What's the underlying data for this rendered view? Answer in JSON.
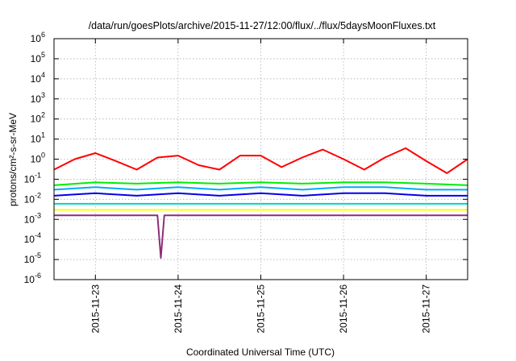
{
  "chart_data": {
    "type": "line",
    "title": "/data/run/goesPlots/archive/2015-11-27/12:00/flux/../flux/5daysMoonFluxes.txt",
    "xlabel": "Coordinated Universal Time (UTC)",
    "ylabel": "protons/cm²-s-sr-MeV",
    "y_scale": "log",
    "ylim": [
      1e-06,
      1000000.0
    ],
    "xlim": [
      "2015-11-22 12:00",
      "2015-11-27 12:00"
    ],
    "grid": true,
    "legend": "none",
    "x_ticks": [
      "2015-11-23",
      "2015-11-24",
      "2015-11-25",
      "2015-11-26",
      "2015-11-27"
    ],
    "y_ticks": [
      "1e-6",
      "1e-5",
      "1e-4",
      "1e-3",
      "1e-2",
      "1e-1",
      "1e0",
      "1e1",
      "1e2",
      "1e3",
      "1e4",
      "1e5",
      "1e6"
    ],
    "series": [
      {
        "color": "#ff0000",
        "x": [
          "2015-11-22 12:00",
          "2015-11-22 18:00",
          "2015-11-23 00:00",
          "2015-11-23 06:00",
          "2015-11-23 12:00",
          "2015-11-23 18:00",
          "2015-11-24 00:00",
          "2015-11-24 06:00",
          "2015-11-24 12:00",
          "2015-11-24 18:00",
          "2015-11-25 00:00",
          "2015-11-25 06:00",
          "2015-11-25 12:00",
          "2015-11-25 18:00",
          "2015-11-26 00:00",
          "2015-11-26 06:00",
          "2015-11-26 12:00",
          "2015-11-26 18:00",
          "2015-11-27 00:00",
          "2015-11-27 06:00",
          "2015-11-27 12:00"
        ],
        "y": [
          0.3,
          1.0,
          2.0,
          0.8,
          0.3,
          1.2,
          1.5,
          0.5,
          0.3,
          1.5,
          1.5,
          0.4,
          1.2,
          3.0,
          1.0,
          0.3,
          1.2,
          3.5,
          0.8,
          0.2,
          1.0
        ]
      },
      {
        "color": "#00ee00",
        "x": [
          "2015-11-22 12:00",
          "2015-11-23 00:00",
          "2015-11-23 12:00",
          "2015-11-24 00:00",
          "2015-11-24 12:00",
          "2015-11-25 00:00",
          "2015-11-25 12:00",
          "2015-11-26 00:00",
          "2015-11-26 12:00",
          "2015-11-27 00:00",
          "2015-11-27 12:00"
        ],
        "y": [
          0.05,
          0.07,
          0.06,
          0.07,
          0.06,
          0.07,
          0.06,
          0.07,
          0.07,
          0.06,
          0.05
        ]
      },
      {
        "color": "#00aaff",
        "x": [
          "2015-11-22 12:00",
          "2015-11-23 00:00",
          "2015-11-23 12:00",
          "2015-11-24 00:00",
          "2015-11-24 12:00",
          "2015-11-25 00:00",
          "2015-11-25 12:00",
          "2015-11-26 00:00",
          "2015-11-26 12:00",
          "2015-11-27 00:00",
          "2015-11-27 12:00"
        ],
        "y": [
          0.03,
          0.04,
          0.03,
          0.04,
          0.03,
          0.04,
          0.03,
          0.04,
          0.04,
          0.03,
          0.03
        ]
      },
      {
        "color": "#0000ee",
        "x": [
          "2015-11-22 12:00",
          "2015-11-23 00:00",
          "2015-11-23 12:00",
          "2015-11-24 00:00",
          "2015-11-24 12:00",
          "2015-11-25 00:00",
          "2015-11-25 12:00",
          "2015-11-26 00:00",
          "2015-11-26 12:00",
          "2015-11-27 00:00",
          "2015-11-27 12:00"
        ],
        "y": [
          0.015,
          0.02,
          0.015,
          0.02,
          0.015,
          0.02,
          0.015,
          0.02,
          0.02,
          0.015,
          0.015
        ]
      },
      {
        "color": "#00d4c0",
        "x": [
          "2015-11-22 12:00",
          "2015-11-23 00:00",
          "2015-11-23 12:00",
          "2015-11-24 00:00",
          "2015-11-24 12:00",
          "2015-11-25 00:00",
          "2015-11-25 12:00",
          "2015-11-26 00:00",
          "2015-11-26 12:00",
          "2015-11-27 00:00",
          "2015-11-27 12:00"
        ],
        "y": [
          0.006,
          0.006,
          0.006,
          0.006,
          0.006,
          0.006,
          0.006,
          0.006,
          0.006,
          0.006,
          0.006
        ]
      },
      {
        "color": "#ffff00",
        "x": [
          "2015-11-22 12:00",
          "2015-11-23 00:00",
          "2015-11-23 12:00",
          "2015-11-24 00:00",
          "2015-11-24 12:00",
          "2015-11-25 00:00",
          "2015-11-25 12:00",
          "2015-11-26 00:00",
          "2015-11-26 12:00",
          "2015-11-27 00:00",
          "2015-11-27 12:00"
        ],
        "y": [
          0.003,
          0.003,
          0.003,
          0.003,
          0.003,
          0.003,
          0.003,
          0.003,
          0.003,
          0.003,
          0.003
        ]
      },
      {
        "color": "#8b2e7a",
        "x": [
          "2015-11-22 12:00",
          "2015-11-23 00:00",
          "2015-11-23 12:00",
          "2015-11-23 18:00",
          "2015-11-23 19:00",
          "2015-11-23 20:00",
          "2015-11-24 00:00",
          "2015-11-24 12:00",
          "2015-11-25 00:00",
          "2015-11-25 12:00",
          "2015-11-26 00:00",
          "2015-11-26 12:00",
          "2015-11-27 00:00",
          "2015-11-27 12:00"
        ],
        "y": [
          0.0016,
          0.0016,
          0.0016,
          0.0016,
          1.2e-05,
          0.0016,
          0.0016,
          0.0016,
          0.0016,
          0.0016,
          0.0016,
          0.0016,
          0.0016,
          0.0016
        ]
      }
    ]
  }
}
